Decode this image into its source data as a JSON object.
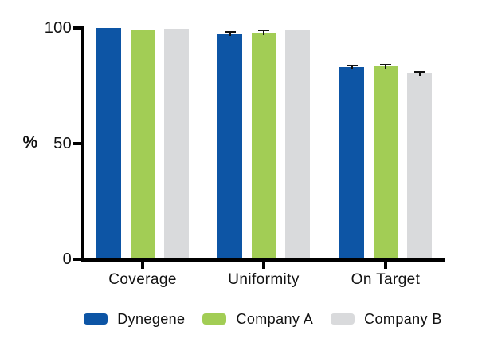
{
  "chart_data": {
    "type": "bar",
    "ylabel": "%",
    "ylim": [
      0,
      100
    ],
    "yticks": [
      0,
      50,
      100
    ],
    "grid": false,
    "legend_position": "bottom",
    "axis_color": "#000000",
    "background_color": "#ffffff",
    "categories": [
      "Coverage",
      "Uniformity",
      "On Target"
    ],
    "series": [
      {
        "name": "Dynegene",
        "color": "#0D55A5",
        "values": [
          100,
          97.5,
          83
        ],
        "errors": [
          0,
          0.8,
          0.8
        ]
      },
      {
        "name": "Company A",
        "color": "#A2CD55",
        "values": [
          99,
          98,
          83.5
        ],
        "errors": [
          0,
          0.8,
          0.7
        ]
      },
      {
        "name": "Company B",
        "color": "#D9DADC",
        "values": [
          99.5,
          99,
          80.5
        ],
        "errors": [
          0,
          0,
          0.6
        ]
      }
    ]
  }
}
